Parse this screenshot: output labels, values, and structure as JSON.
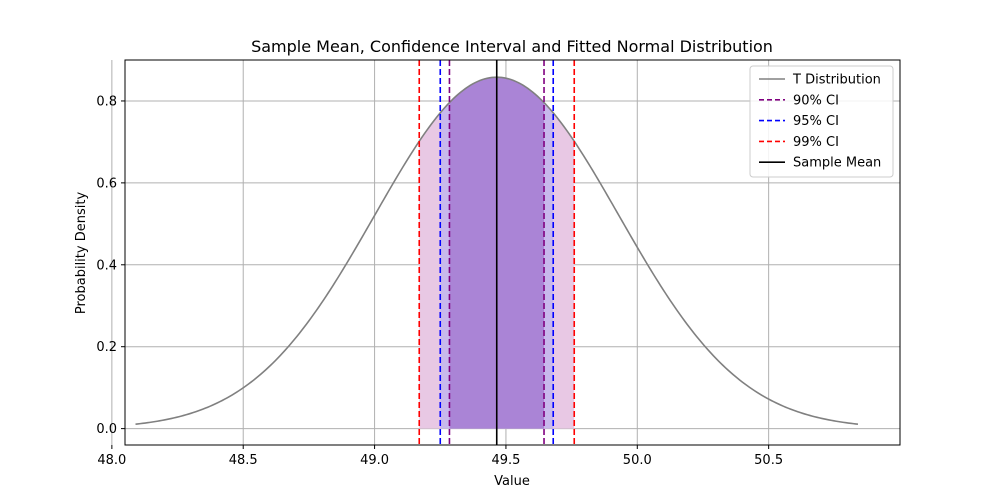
{
  "chart_data": {
    "type": "line",
    "title": "Sample Mean, Confidence Interval and Fitted Normal Distribution",
    "xlabel": "Value",
    "ylabel": "Probability Density",
    "xlim": [
      48.05,
      51.0
    ],
    "ylim": [
      -0.04,
      0.9
    ],
    "xticks": [
      48.0,
      48.5,
      49.0,
      49.5,
      50.0,
      50.5
    ],
    "xtick_labels": [
      "48.0",
      "48.5",
      "49.0",
      "49.5",
      "50.0",
      "50.5"
    ],
    "yticks": [
      0.0,
      0.2,
      0.4,
      0.6,
      0.8
    ],
    "ytick_labels": [
      "0.0",
      "0.2",
      "0.4",
      "0.6",
      "0.8"
    ],
    "grid": true,
    "legend_position": "top-right",
    "curve": {
      "name": "T Distribution",
      "color": "#808080",
      "x_range": [
        48.09,
        50.84
      ],
      "mean": 49.465,
      "peak_density": 0.858,
      "std": 0.465
    },
    "sample_mean": {
      "name": "Sample Mean",
      "value": 49.465,
      "color": "#000000"
    },
    "confidence_intervals": [
      {
        "name": "99% CI",
        "lower": 49.17,
        "upper": 49.76,
        "color": "#ff0000",
        "fill": "#e8c8e4"
      },
      {
        "name": "95% CI",
        "lower": 49.25,
        "upper": 49.68,
        "color": "#0000ff",
        "fill": "#c8b8ec"
      },
      {
        "name": "90% CI",
        "lower": 49.285,
        "upper": 49.645,
        "color": "#800080",
        "fill": "#aa84d6"
      }
    ],
    "legend": [
      {
        "label": "T Distribution",
        "color": "#808080",
        "style": "solid"
      },
      {
        "label": "90% CI",
        "color": "#800080",
        "style": "dashed"
      },
      {
        "label": "95% CI",
        "color": "#0000ff",
        "style": "dashed"
      },
      {
        "label": "99% CI",
        "color": "#ff0000",
        "style": "dashed"
      },
      {
        "label": "Sample Mean",
        "color": "#000000",
        "style": "solid"
      }
    ]
  }
}
